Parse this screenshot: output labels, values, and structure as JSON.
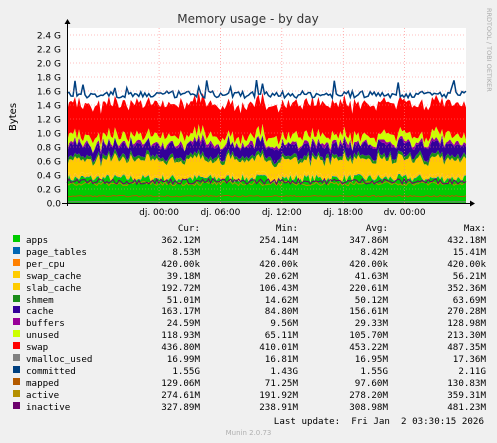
{
  "chart_data": {
    "type": "area",
    "title": "Memory usage - by day",
    "ylabel": "Bytes",
    "watermark": "RRDTOOL / TOBI OETIKER",
    "y_ticks": [
      0.0,
      0.2,
      0.4,
      0.6,
      0.8,
      1.0,
      1.2,
      1.4,
      1.6,
      1.8,
      2.0,
      2.2,
      2.4
    ],
    "y_tick_labels": [
      "0.0",
      "0.2 G",
      "0.4 G",
      "0.6 G",
      "0.8 G",
      "1.0 G",
      "1.2 G",
      "1.4 G",
      "1.6 G",
      "1.8 G",
      "2.0 G",
      "2.2 G",
      "2.4 G"
    ],
    "ylim": [
      0,
      2.5
    ],
    "x_range_hours": [
      -9,
      30
    ],
    "x_ticks": [
      {
        "hour": 0,
        "label": "dj. 00:00"
      },
      {
        "hour": 6,
        "label": "dj. 06:00"
      },
      {
        "hour": 12,
        "label": "dj. 12:00"
      },
      {
        "hour": 18,
        "label": "dj. 18:00"
      },
      {
        "hour": 24,
        "label": "dv. 00:00"
      }
    ],
    "units": "G",
    "columns": [
      "Cur:",
      "Min:",
      "Avg:",
      "Max:"
    ],
    "series": [
      {
        "name": "apps",
        "color": "#00cc00",
        "kind": "stack",
        "cur": "362.12M",
        "min": "254.14M",
        "avg": "347.86M",
        "max": "432.18M",
        "level": 0.348
      },
      {
        "name": "page_tables",
        "color": "#0066b3",
        "kind": "stack",
        "cur": "8.53M",
        "min": "6.44M",
        "avg": "8.42M",
        "max": "15.41M",
        "level": 0.008
      },
      {
        "name": "per_cpu",
        "color": "#ff8000",
        "kind": "stack",
        "cur": "420.00k",
        "min": "420.00k",
        "avg": "420.00k",
        "max": "420.00k",
        "level": 0.0004
      },
      {
        "name": "swap_cache",
        "color": "#ffcc00",
        "kind": "stack",
        "cur": "39.18M",
        "min": "20.62M",
        "avg": "41.63M",
        "max": "56.21M",
        "level": 0.042
      },
      {
        "name": "slab_cache",
        "color": "#ffcc00",
        "kind": "stack",
        "cur": "192.72M",
        "min": "106.43M",
        "avg": "220.61M",
        "max": "352.36M",
        "level": 0.221
      },
      {
        "name": "shmem",
        "color": "#1a8c1a",
        "kind": "stack",
        "cur": "51.01M",
        "min": "14.62M",
        "avg": "50.12M",
        "max": "63.69M",
        "level": 0.05
      },
      {
        "name": "cache",
        "color": "#330099",
        "kind": "stack",
        "cur": "163.17M",
        "min": "84.80M",
        "avg": "156.61M",
        "max": "270.28M",
        "level": 0.157
      },
      {
        "name": "buffers",
        "color": "#990099",
        "kind": "stack",
        "cur": "24.59M",
        "min": "9.56M",
        "avg": "29.33M",
        "max": "128.98M",
        "level": 0.029
      },
      {
        "name": "unused",
        "color": "#ccff00",
        "kind": "stack",
        "cur": "118.93M",
        "min": "65.11M",
        "avg": "105.70M",
        "max": "213.30M",
        "level": 0.106
      },
      {
        "name": "swap",
        "color": "#ff0000",
        "kind": "stack",
        "cur": "436.80M",
        "min": "410.01M",
        "avg": "453.22M",
        "max": "487.35M",
        "level": 0.453
      },
      {
        "name": "vmalloc_used",
        "color": "#808080",
        "kind": "line",
        "cur": "16.99M",
        "min": "16.81M",
        "avg": "16.95M",
        "max": "17.36M",
        "level": 0.017
      },
      {
        "name": "committed",
        "color": "#004080",
        "kind": "line",
        "cur": "1.55G",
        "min": "1.43G",
        "avg": "1.55G",
        "max": "2.11G",
        "level": 1.55
      },
      {
        "name": "mapped",
        "color": "#b35a00",
        "kind": "line",
        "cur": "129.06M",
        "min": "71.25M",
        "avg": "97.60M",
        "max": "130.83M",
        "level": 0.098
      },
      {
        "name": "active",
        "color": "#b38f00",
        "kind": "line",
        "cur": "274.61M",
        "min": "191.92M",
        "avg": "278.20M",
        "max": "359.31M",
        "level": 0.278
      },
      {
        "name": "inactive",
        "color": "#6b006b",
        "kind": "line",
        "cur": "327.89M",
        "min": "238.91M",
        "avg": "308.98M",
        "max": "481.23M",
        "level": 0.309
      }
    ]
  },
  "footer": {
    "last_update": "Last update:  Fri Jan  2 03:30:15 2026",
    "version": "Munin 2.0.73"
  }
}
